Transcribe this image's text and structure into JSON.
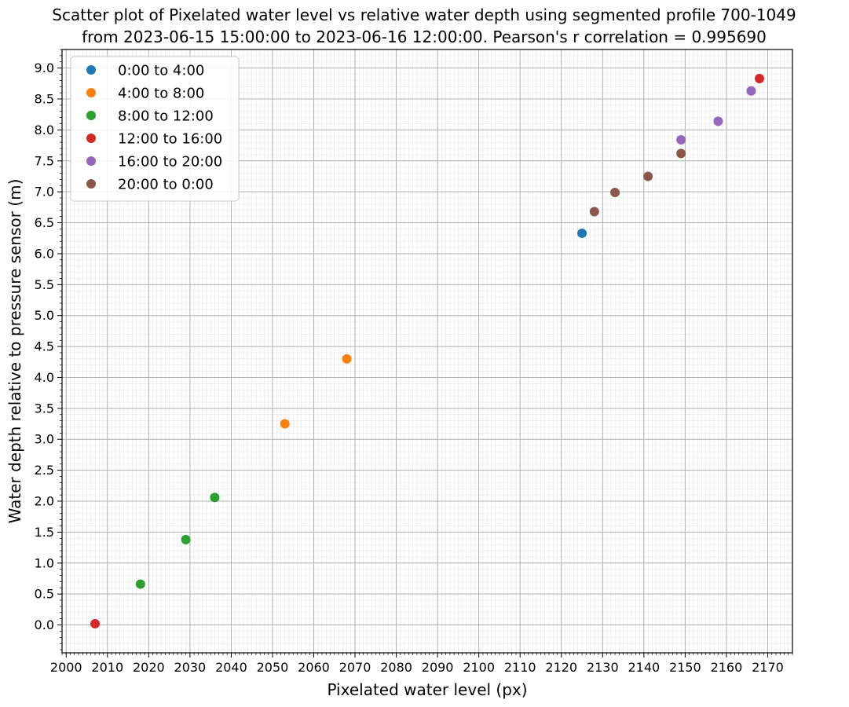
{
  "chart_data": {
    "type": "scatter",
    "title_lines": [
      "Scatter plot of Pixelated water level vs relative water depth using segmented profile 700-1049",
      "from 2023-06-15 15:00:00 to 2023-06-16 12:00:00. Pearson's r correlation = 0.995690"
    ],
    "xlabel": "Pixelated water level (px)",
    "ylabel": "Water depth relative to pressure sensor (m)",
    "xlim": [
      1999,
      2176
    ],
    "ylim": [
      -0.45,
      9.3
    ],
    "x_major_ticks": [
      2000,
      2010,
      2020,
      2030,
      2040,
      2050,
      2060,
      2070,
      2080,
      2090,
      2100,
      2110,
      2120,
      2130,
      2140,
      2150,
      2160,
      2170
    ],
    "x_tick_labels": [
      "2000",
      "2010",
      "2020",
      "2030",
      "2040",
      "2050",
      "2060",
      "2070",
      "2080",
      "2090",
      "2100",
      "2110",
      "2120",
      "2130",
      "2140",
      "2150",
      "2160",
      "2170"
    ],
    "y_major_ticks": [
      0.0,
      0.5,
      1.0,
      1.5,
      2.0,
      2.5,
      3.0,
      3.5,
      4.0,
      4.5,
      5.0,
      5.5,
      6.0,
      6.5,
      7.0,
      7.5,
      8.0,
      8.5,
      9.0
    ],
    "y_tick_labels": [
      "0.0",
      "0.5",
      "1.0",
      "1.5",
      "2.0",
      "2.5",
      "3.0",
      "3.5",
      "4.0",
      "4.5",
      "5.0",
      "5.5",
      "6.0",
      "6.5",
      "7.0",
      "7.5",
      "8.0",
      "8.5",
      "9.0"
    ],
    "x_minor_step": 1,
    "y_minor_step": 0.1,
    "grid": true,
    "legend_position": "upper-left",
    "series": [
      {
        "name": "0:00 to 4:00",
        "color": "#1f77b4",
        "points": [
          [
            2125,
            6.33
          ]
        ]
      },
      {
        "name": "4:00 to 8:00",
        "color": "#ff7f0e",
        "points": [
          [
            2053,
            3.25
          ],
          [
            2068,
            4.3
          ]
        ]
      },
      {
        "name": "8:00 to 12:00",
        "color": "#2ca02c",
        "points": [
          [
            2018,
            0.66
          ],
          [
            2029,
            1.38
          ],
          [
            2036,
            2.06
          ]
        ]
      },
      {
        "name": "12:00 to 16:00",
        "color": "#d62728",
        "points": [
          [
            2007,
            0.02
          ],
          [
            2168,
            8.83
          ]
        ]
      },
      {
        "name": "16:00 to 20:00",
        "color": "#9467bd",
        "points": [
          [
            2149,
            7.84
          ],
          [
            2158,
            8.14
          ],
          [
            2166,
            8.63
          ]
        ]
      },
      {
        "name": "20:00 to 0:00",
        "color": "#8c564b",
        "points": [
          [
            2128,
            6.68
          ],
          [
            2133,
            6.99
          ],
          [
            2141,
            7.25
          ],
          [
            2149,
            7.62
          ]
        ]
      }
    ]
  }
}
